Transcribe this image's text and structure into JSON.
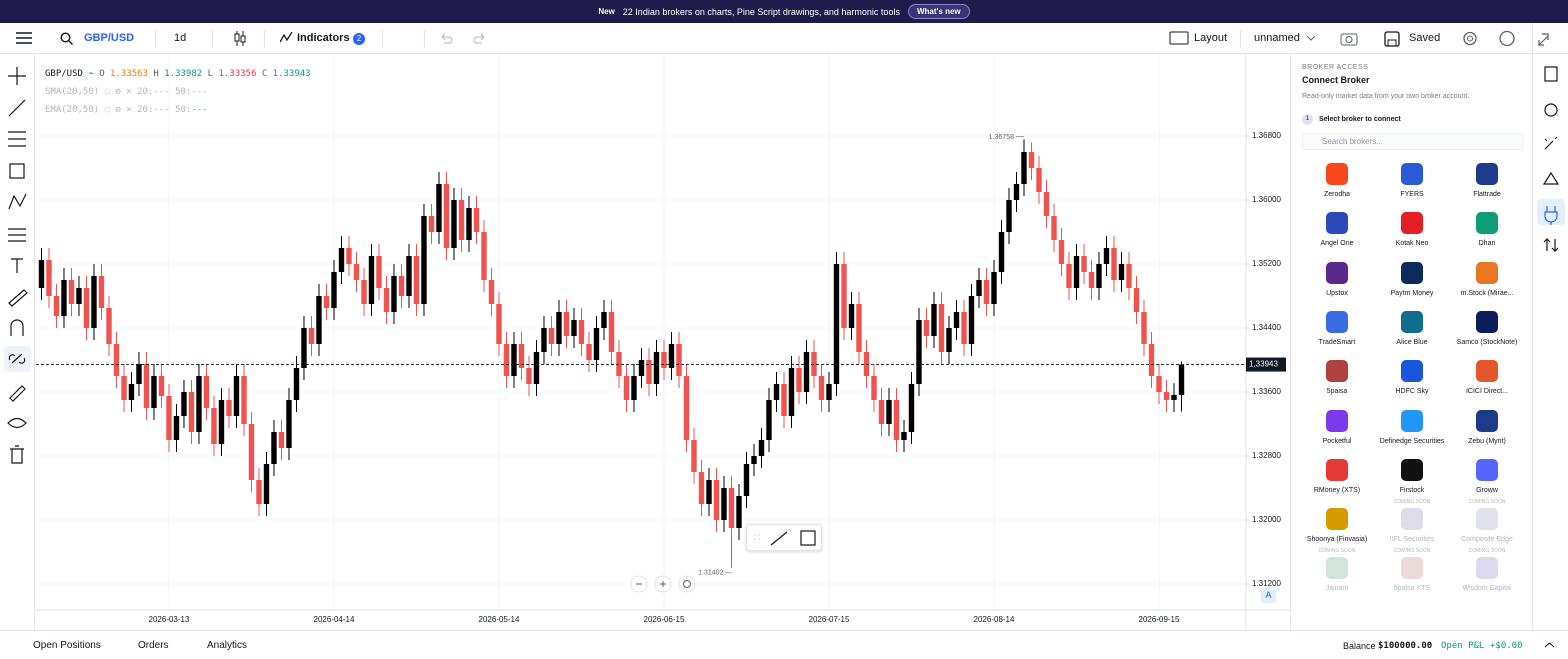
{
  "banner": {
    "badge": "New",
    "text": "22 Indian brokers on charts, Pine Script drawings, and harmonic tools",
    "button": "What's new"
  },
  "toolbar": {
    "symbol": "GBP/USD",
    "interval": "1d",
    "indicators": "Indicators",
    "indicator_count": "2",
    "layout": "Layout",
    "layout_name": "unnamed",
    "saved": "Saved"
  },
  "legend": {
    "symbol": "GBP/USD",
    "o": "O",
    "h": "H",
    "l": "L",
    "c": "C",
    "sma": {
      "name": "SMA(20,50)",
      "p1": "20:",
      "v1": "---",
      "p2": "50:",
      "v2": "---"
    },
    "ema": {
      "name": "EMA(20,50)",
      "p1": "20:",
      "v1": "---",
      "p2": "50:",
      "v2": "---"
    }
  },
  "scale_button": "A",
  "sidebar": {
    "section": "BROKER ACCESS",
    "title": "Connect Broker",
    "subtitle": "Read-only market data from your own broker account.",
    "step": "1",
    "step_text": "Select broker to connect",
    "search": "Search brokers...",
    "coming_soon": "COMING SOON",
    "brokers": [
      {
        "name": "Zerodha",
        "color": "#f6461a",
        "soon": false
      },
      {
        "name": "FYERS",
        "color": "#2a5bd7",
        "soon": false
      },
      {
        "name": "Flattrade",
        "color": "#1e3a8a",
        "soon": false
      },
      {
        "name": "Angel One",
        "color": "#2b4ab8",
        "soon": false
      },
      {
        "name": "Kotak Neo",
        "color": "#e31e24",
        "soon": false
      },
      {
        "name": "Dhan",
        "color": "#0f9d77",
        "soon": false
      },
      {
        "name": "Upstox",
        "color": "#5a298b",
        "soon": false
      },
      {
        "name": "Paytm Money",
        "color": "#0d2a5c",
        "soon": false
      },
      {
        "name": "m.Stock (Mirae...",
        "color": "#e87722",
        "soon": false
      },
      {
        "name": "TradeSmart",
        "color": "#3b6be0",
        "soon": false
      },
      {
        "name": "Alice Blue",
        "color": "#0f6e8c",
        "soon": false
      },
      {
        "name": "Samco (StockNote)",
        "color": "#0b1d5c",
        "soon": false
      },
      {
        "name": "5paisa",
        "color": "#b0413e",
        "soon": false
      },
      {
        "name": "HDFC Sky",
        "color": "#1a56db",
        "soon": false
      },
      {
        "name": "ICICI Direct...",
        "color": "#e2572b",
        "soon": false
      },
      {
        "name": "Pocketful",
        "color": "#7c3aed",
        "soon": false
      },
      {
        "name": "Definedge Securities",
        "color": "#2196f3",
        "soon": false
      },
      {
        "name": "Zebu (Mynt)",
        "color": "#1e3a8a",
        "soon": false
      },
      {
        "name": "RMoney (XTS)",
        "color": "#e53935",
        "soon": false
      },
      {
        "name": "Firstock",
        "color": "#111111",
        "soon": false
      },
      {
        "name": "Groww",
        "color": "#5367ff",
        "soon": false
      },
      {
        "name": "Shoonya (Finvasia)",
        "color": "#d79b00",
        "soon": false
      },
      {
        "name": "IIFL Securities",
        "color": "#8a8fb5",
        "soon": true
      },
      {
        "name": "Composite Edge",
        "color": "#9aa0c8",
        "soon": true
      },
      {
        "name": "Jainam",
        "color": "#6aa88a",
        "soon": true
      },
      {
        "name": "5paisa XTS",
        "color": "#c08080",
        "soon": true
      },
      {
        "name": "Wisdom Capital",
        "color": "#8a80c8",
        "soon": true
      }
    ]
  },
  "bottom": {
    "tabs": [
      "Open Positions",
      "Orders",
      "Analytics"
    ],
    "balance_label": "Balance",
    "balance": "$100000.00",
    "pnl_label": "Open P&L",
    "pnl": "+$0.00"
  },
  "chart_data": {
    "type": "candlestick",
    "up_color": "#000000",
    "down_color": "#ef5350",
    "grid": true,
    "xlim": [
      -0.73,
      160.6
    ],
    "ylim": [
      1.30875,
      1.37825
    ],
    "xticks": [
      {
        "value": 17,
        "label": "2026-03-13"
      },
      {
        "value": 39,
        "label": "2026-04-14"
      },
      {
        "value": 61,
        "label": "2026-05-14"
      },
      {
        "value": 83,
        "label": "2026-06-15"
      },
      {
        "value": 105,
        "label": "2026-07-15"
      },
      {
        "value": 127,
        "label": "2026-08-14"
      },
      {
        "value": 149,
        "label": "2026-09-15"
      }
    ],
    "yticks": [
      {
        "value": 1.368,
        "label": "1.36800"
      },
      {
        "value": 1.36,
        "label": "1.36000"
      },
      {
        "value": 1.352,
        "label": "1.35200"
      },
      {
        "value": 1.344,
        "label": "1.34400"
      },
      {
        "value": 1.336,
        "label": "1.33600"
      },
      {
        "value": 1.328,
        "label": "1.32800"
      },
      {
        "value": 1.32,
        "label": "1.32000"
      },
      {
        "value": 1.312,
        "label": "1.31200"
      }
    ],
    "high_index": 131,
    "low_index": 92,
    "candles": [
      [
        1.349,
        1.354,
        1.3475,
        1.3525
      ],
      [
        1.3525,
        1.354,
        1.3465,
        1.348
      ],
      [
        1.348,
        1.3495,
        1.344,
        1.3455
      ],
      [
        1.3455,
        1.3515,
        1.344,
        1.35
      ],
      [
        1.35,
        1.3515,
        1.3455,
        1.347
      ],
      [
        1.347,
        1.3505,
        1.3455,
        1.349
      ],
      [
        1.349,
        1.3505,
        1.3425,
        1.344
      ],
      [
        1.344,
        1.352,
        1.3425,
        1.3505
      ],
      [
        1.3505,
        1.352,
        1.345,
        1.3465
      ],
      [
        1.3465,
        1.348,
        1.3405,
        1.342
      ],
      [
        1.342,
        1.3435,
        1.3365,
        1.338
      ],
      [
        1.338,
        1.3395,
        1.3335,
        1.335
      ],
      [
        1.335,
        1.3385,
        1.3335,
        1.337
      ],
      [
        1.337,
        1.341,
        1.3355,
        1.3395
      ],
      [
        1.3395,
        1.341,
        1.3325,
        1.334
      ],
      [
        1.334,
        1.3395,
        1.3325,
        1.338
      ],
      [
        1.338,
        1.3395,
        1.334,
        1.3355
      ],
      [
        1.3355,
        1.337,
        1.3285,
        1.33
      ],
      [
        1.33,
        1.3345,
        1.3285,
        1.333
      ],
      [
        1.333,
        1.3375,
        1.3315,
        1.336
      ],
      [
        1.336,
        1.3375,
        1.3295,
        1.331
      ],
      [
        1.331,
        1.3395,
        1.3295,
        1.338
      ],
      [
        1.338,
        1.3395,
        1.3325,
        1.334
      ],
      [
        1.334,
        1.3355,
        1.328,
        1.3295
      ],
      [
        1.3295,
        1.3365,
        1.328,
        1.335
      ],
      [
        1.335,
        1.3365,
        1.3315,
        1.333
      ],
      [
        1.333,
        1.3395,
        1.3315,
        1.338
      ],
      [
        1.338,
        1.3395,
        1.3305,
        1.332
      ],
      [
        1.332,
        1.3335,
        1.3235,
        1.325
      ],
      [
        1.325,
        1.3265,
        1.3205,
        1.322
      ],
      [
        1.322,
        1.3285,
        1.3205,
        1.327
      ],
      [
        1.327,
        1.3325,
        1.3255,
        1.331
      ],
      [
        1.331,
        1.3325,
        1.3275,
        1.329
      ],
      [
        1.329,
        1.3365,
        1.3275,
        1.335
      ],
      [
        1.335,
        1.3405,
        1.3335,
        1.339
      ],
      [
        1.339,
        1.3455,
        1.3375,
        1.344
      ],
      [
        1.344,
        1.3455,
        1.3405,
        1.342
      ],
      [
        1.342,
        1.3495,
        1.3405,
        1.348
      ],
      [
        1.348,
        1.3495,
        1.345,
        1.3465
      ],
      [
        1.3465,
        1.3525,
        1.345,
        1.351
      ],
      [
        1.351,
        1.3555,
        1.3495,
        1.354
      ],
      [
        1.354,
        1.3555,
        1.3505,
        1.352
      ],
      [
        1.352,
        1.3535,
        1.3485,
        1.35
      ],
      [
        1.35,
        1.3515,
        1.3455,
        1.347
      ],
      [
        1.347,
        1.3545,
        1.3455,
        1.353
      ],
      [
        1.353,
        1.3545,
        1.3475,
        1.349
      ],
      [
        1.349,
        1.3505,
        1.3445,
        1.346
      ],
      [
        1.346,
        1.352,
        1.3445,
        1.3505
      ],
      [
        1.3505,
        1.352,
        1.3465,
        1.348
      ],
      [
        1.348,
        1.3545,
        1.3465,
        1.353
      ],
      [
        1.353,
        1.3545,
        1.3455,
        1.347
      ],
      [
        1.347,
        1.3595,
        1.3455,
        1.358
      ],
      [
        1.358,
        1.3595,
        1.3545,
        1.356
      ],
      [
        1.356,
        1.3635,
        1.3545,
        1.362
      ],
      [
        1.362,
        1.3635,
        1.3525,
        1.354
      ],
      [
        1.354,
        1.3615,
        1.3525,
        1.36
      ],
      [
        1.36,
        1.3615,
        1.3535,
        1.355
      ],
      [
        1.355,
        1.3605,
        1.3535,
        1.359
      ],
      [
        1.359,
        1.3605,
        1.3545,
        1.356
      ],
      [
        1.356,
        1.3575,
        1.3485,
        1.35
      ],
      [
        1.35,
        1.3515,
        1.3455,
        1.347
      ],
      [
        1.347,
        1.3485,
        1.3405,
        1.342
      ],
      [
        1.342,
        1.3435,
        1.3365,
        1.338
      ],
      [
        1.338,
        1.3435,
        1.3365,
        1.342
      ],
      [
        1.342,
        1.3435,
        1.3375,
        1.339
      ],
      [
        1.339,
        1.3405,
        1.3355,
        1.337
      ],
      [
        1.337,
        1.3425,
        1.3355,
        1.341
      ],
      [
        1.341,
        1.3455,
        1.3395,
        1.344
      ],
      [
        1.344,
        1.3455,
        1.3405,
        1.342
      ],
      [
        1.342,
        1.3475,
        1.3405,
        1.346
      ],
      [
        1.346,
        1.3475,
        1.3415,
        1.343
      ],
      [
        1.343,
        1.3465,
        1.3415,
        1.345
      ],
      [
        1.345,
        1.3465,
        1.3405,
        1.342
      ],
      [
        1.342,
        1.3435,
        1.3385,
        1.34
      ],
      [
        1.34,
        1.3455,
        1.3385,
        1.344
      ],
      [
        1.344,
        1.3475,
        1.3425,
        1.346
      ],
      [
        1.346,
        1.3475,
        1.3395,
        1.341
      ],
      [
        1.341,
        1.3425,
        1.3365,
        1.338
      ],
      [
        1.338,
        1.3395,
        1.3335,
        1.335
      ],
      [
        1.335,
        1.3395,
        1.3335,
        1.338
      ],
      [
        1.338,
        1.3415,
        1.3365,
        1.34
      ],
      [
        1.34,
        1.3415,
        1.3355,
        1.337
      ],
      [
        1.337,
        1.3425,
        1.3355,
        1.341
      ],
      [
        1.341,
        1.3425,
        1.3375,
        1.339
      ],
      [
        1.339,
        1.3435,
        1.3375,
        1.342
      ],
      [
        1.342,
        1.3435,
        1.3365,
        1.338
      ],
      [
        1.338,
        1.3395,
        1.3285,
        1.33
      ],
      [
        1.33,
        1.3315,
        1.3245,
        1.326
      ],
      [
        1.326,
        1.3275,
        1.3205,
        1.322
      ],
      [
        1.322,
        1.3265,
        1.3205,
        1.325
      ],
      [
        1.325,
        1.3265,
        1.3185,
        1.32
      ],
      [
        1.32,
        1.3255,
        1.3185,
        1.324
      ],
      [
        1.324,
        1.3255,
        1.31402,
        1.319
      ],
      [
        1.319,
        1.3245,
        1.3175,
        1.323
      ],
      [
        1.323,
        1.3285,
        1.3215,
        1.327
      ],
      [
        1.327,
        1.3295,
        1.3255,
        1.328
      ],
      [
        1.328,
        1.3315,
        1.3265,
        1.33
      ],
      [
        1.33,
        1.3365,
        1.3285,
        1.335
      ],
      [
        1.335,
        1.3385,
        1.3335,
        1.337
      ],
      [
        1.337,
        1.3385,
        1.3315,
        1.333
      ],
      [
        1.333,
        1.3405,
        1.3315,
        1.339
      ],
      [
        1.339,
        1.3405,
        1.3345,
        1.336
      ],
      [
        1.336,
        1.3425,
        1.3345,
        1.341
      ],
      [
        1.341,
        1.3425,
        1.3365,
        1.338
      ],
      [
        1.338,
        1.3395,
        1.3335,
        1.335
      ],
      [
        1.335,
        1.3385,
        1.3335,
        1.337
      ],
      [
        1.337,
        1.3535,
        1.3355,
        1.352
      ],
      [
        1.352,
        1.3535,
        1.3425,
        1.344
      ],
      [
        1.344,
        1.3485,
        1.3425,
        1.347
      ],
      [
        1.347,
        1.3485,
        1.3395,
        1.341
      ],
      [
        1.341,
        1.3425,
        1.3365,
        1.338
      ],
      [
        1.338,
        1.3395,
        1.3335,
        1.335
      ],
      [
        1.335,
        1.3365,
        1.3305,
        1.332
      ],
      [
        1.332,
        1.3365,
        1.3305,
        1.335
      ],
      [
        1.335,
        1.3365,
        1.3285,
        1.33
      ],
      [
        1.33,
        1.3325,
        1.3285,
        1.331
      ],
      [
        1.331,
        1.3385,
        1.3295,
        1.337
      ],
      [
        1.337,
        1.3465,
        1.3355,
        1.345
      ],
      [
        1.345,
        1.3465,
        1.3415,
        1.343
      ],
      [
        1.343,
        1.3485,
        1.3415,
        1.347
      ],
      [
        1.347,
        1.3485,
        1.3395,
        1.341
      ],
      [
        1.341,
        1.3455,
        1.3395,
        1.344
      ],
      [
        1.344,
        1.3475,
        1.3425,
        1.346
      ],
      [
        1.346,
        1.3475,
        1.3405,
        1.342
      ],
      [
        1.342,
        1.3495,
        1.3405,
        1.348
      ],
      [
        1.348,
        1.3515,
        1.3465,
        1.35
      ],
      [
        1.35,
        1.3515,
        1.3455,
        1.347
      ],
      [
        1.347,
        1.3525,
        1.3455,
        1.351
      ],
      [
        1.351,
        1.3575,
        1.3495,
        1.356
      ],
      [
        1.356,
        1.3615,
        1.3545,
        1.36
      ],
      [
        1.36,
        1.3635,
        1.3585,
        1.362
      ],
      [
        1.362,
        1.36758,
        1.3605,
        1.366
      ],
      [
        1.366,
        1.3672,
        1.3625,
        1.364
      ],
      [
        1.364,
        1.3655,
        1.3595,
        1.361
      ],
      [
        1.361,
        1.3625,
        1.3565,
        1.358
      ],
      [
        1.358,
        1.3595,
        1.3535,
        1.355
      ],
      [
        1.355,
        1.3565,
        1.3505,
        1.352
      ],
      [
        1.352,
        1.3535,
        1.3475,
        1.349
      ],
      [
        1.349,
        1.3545,
        1.3475,
        1.353
      ],
      [
        1.353,
        1.3545,
        1.3495,
        1.351
      ],
      [
        1.351,
        1.3525,
        1.3475,
        1.349
      ],
      [
        1.349,
        1.3535,
        1.3475,
        1.352
      ],
      [
        1.352,
        1.3555,
        1.3505,
        1.354
      ],
      [
        1.354,
        1.3555,
        1.3485,
        1.35
      ],
      [
        1.35,
        1.3535,
        1.3485,
        1.352
      ],
      [
        1.352,
        1.3535,
        1.3475,
        1.349
      ],
      [
        1.349,
        1.3505,
        1.3445,
        1.346
      ],
      [
        1.346,
        1.3475,
        1.3405,
        1.342
      ],
      [
        1.342,
        1.3435,
        1.3365,
        1.338
      ],
      [
        1.338,
        1.3395,
        1.3345,
        1.336
      ],
      [
        1.336,
        1.3375,
        1.3335,
        1.335
      ],
      [
        1.335,
        1.3371,
        1.3335,
        1.33563
      ],
      [
        1.33563,
        1.33982,
        1.33356,
        1.33943
      ]
    ]
  }
}
